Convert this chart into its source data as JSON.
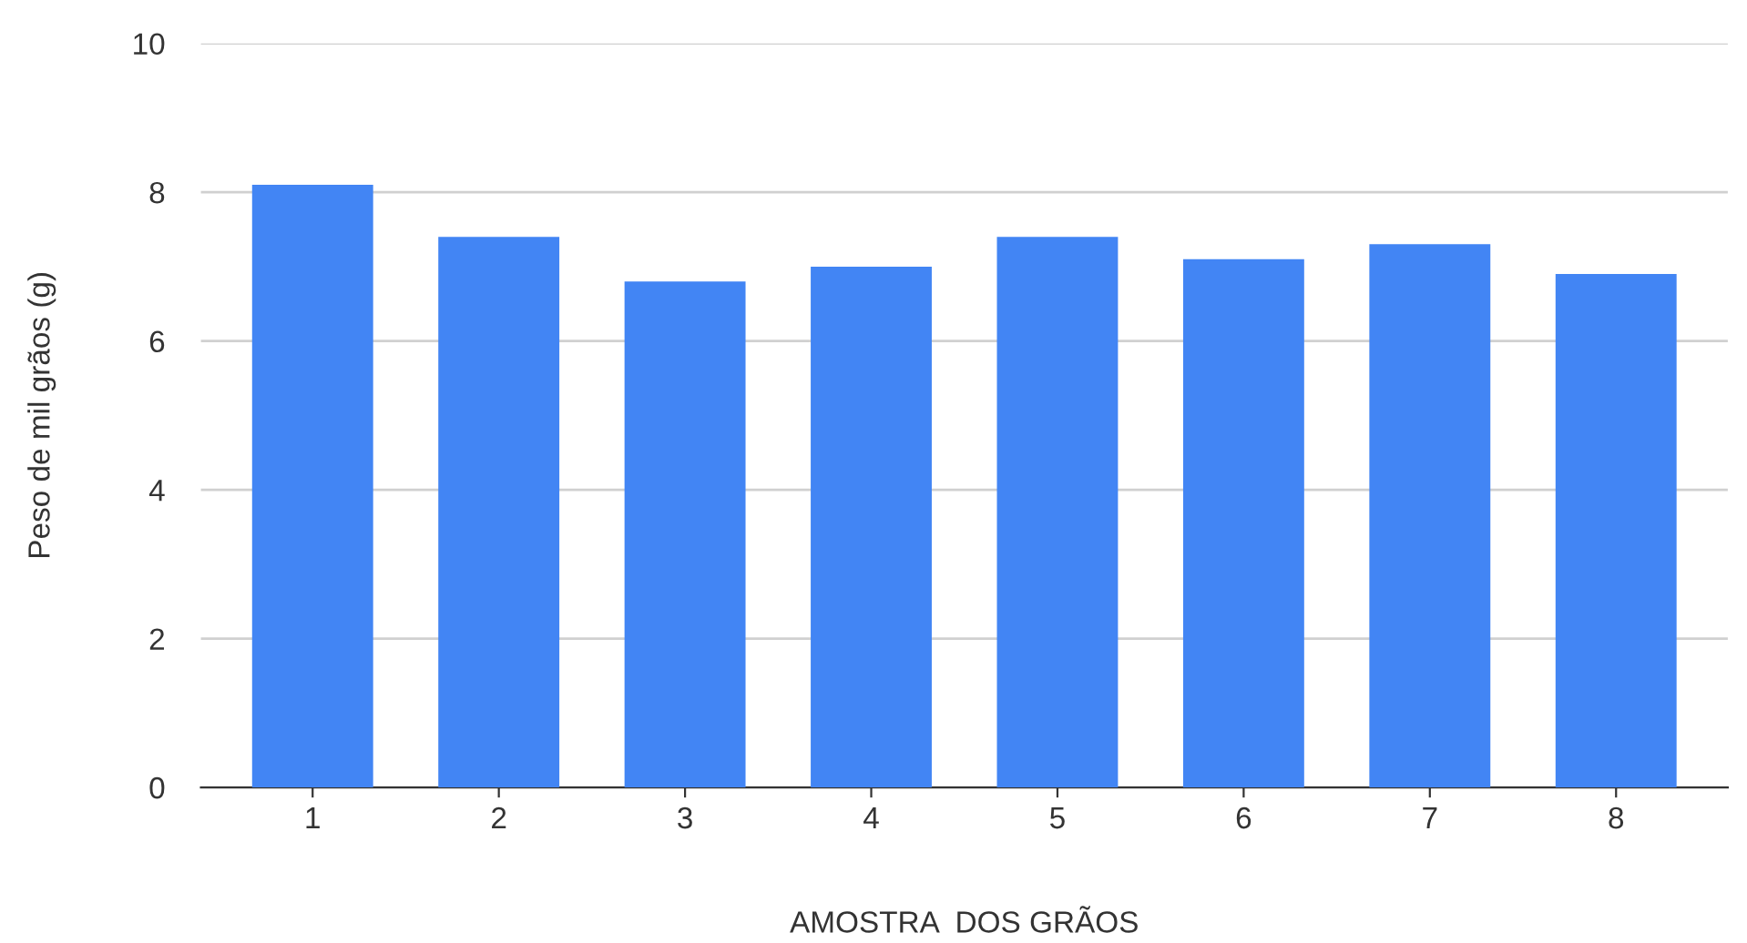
{
  "chart_data": {
    "type": "bar",
    "xlabel": "AMOSTRA  DOS GRÃOS",
    "ylabel": "Peso de mil grãos (g)",
    "categories": [
      "1",
      "2",
      "3",
      "4",
      "5",
      "6",
      "7",
      "8"
    ],
    "values": [
      8.1,
      7.4,
      6.8,
      7.0,
      7.4,
      7.1,
      7.3,
      6.9
    ],
    "color": "#4285f4",
    "ylim": [
      0,
      10
    ],
    "yticks": [
      0,
      2,
      4,
      6,
      8,
      10
    ],
    "grid": "y",
    "legend": false
  }
}
